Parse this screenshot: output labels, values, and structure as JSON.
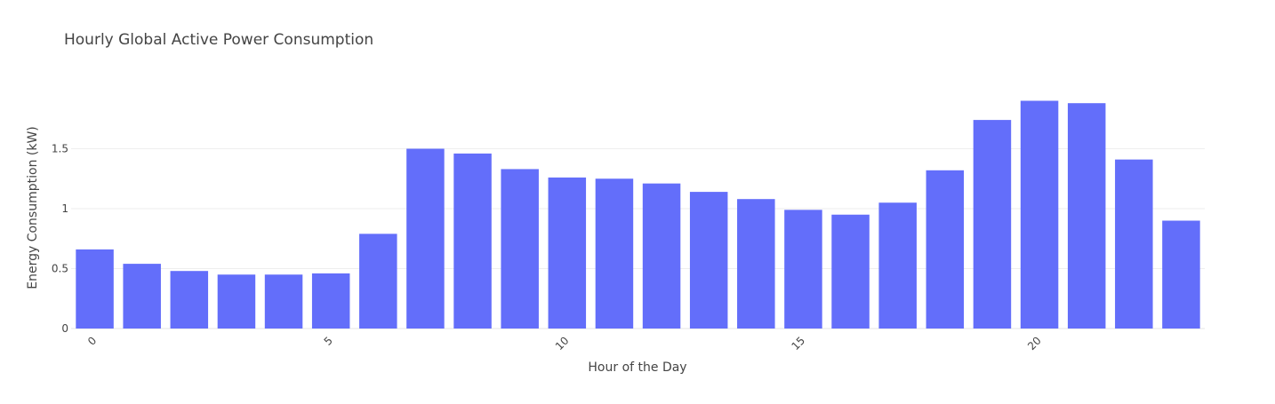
{
  "chart_data": {
    "type": "bar",
    "title": "Hourly Global Active Power Consumption",
    "xlabel": "Hour of the Day",
    "ylabel": "Energy Consumption (kW)",
    "x": [
      0,
      1,
      2,
      3,
      4,
      5,
      6,
      7,
      8,
      9,
      10,
      11,
      12,
      13,
      14,
      15,
      16,
      17,
      18,
      19,
      20,
      21,
      22,
      23
    ],
    "values": [
      0.66,
      0.54,
      0.48,
      0.45,
      0.45,
      0.46,
      0.79,
      1.5,
      1.46,
      1.33,
      1.26,
      1.25,
      1.21,
      1.14,
      1.08,
      0.99,
      0.95,
      1.05,
      1.32,
      1.74,
      1.9,
      1.88,
      1.41,
      0.9
    ],
    "x_ticks": [
      {
        "value": 0,
        "label": "0"
      },
      {
        "value": 5,
        "label": "5"
      },
      {
        "value": 10,
        "label": "10"
      },
      {
        "value": 15,
        "label": "15"
      },
      {
        "value": 20,
        "label": "20"
      }
    ],
    "y_ticks": [
      {
        "value": 0,
        "label": "0"
      },
      {
        "value": 0.5,
        "label": "0.5"
      },
      {
        "value": 1,
        "label": "1"
      },
      {
        "value": 1.5,
        "label": "1.5"
      }
    ],
    "ylim": [
      0,
      2.0
    ],
    "xlim": [
      -0.5,
      23.5
    ],
    "bar_color": "#636efa",
    "grid": true,
    "legend": "none"
  }
}
